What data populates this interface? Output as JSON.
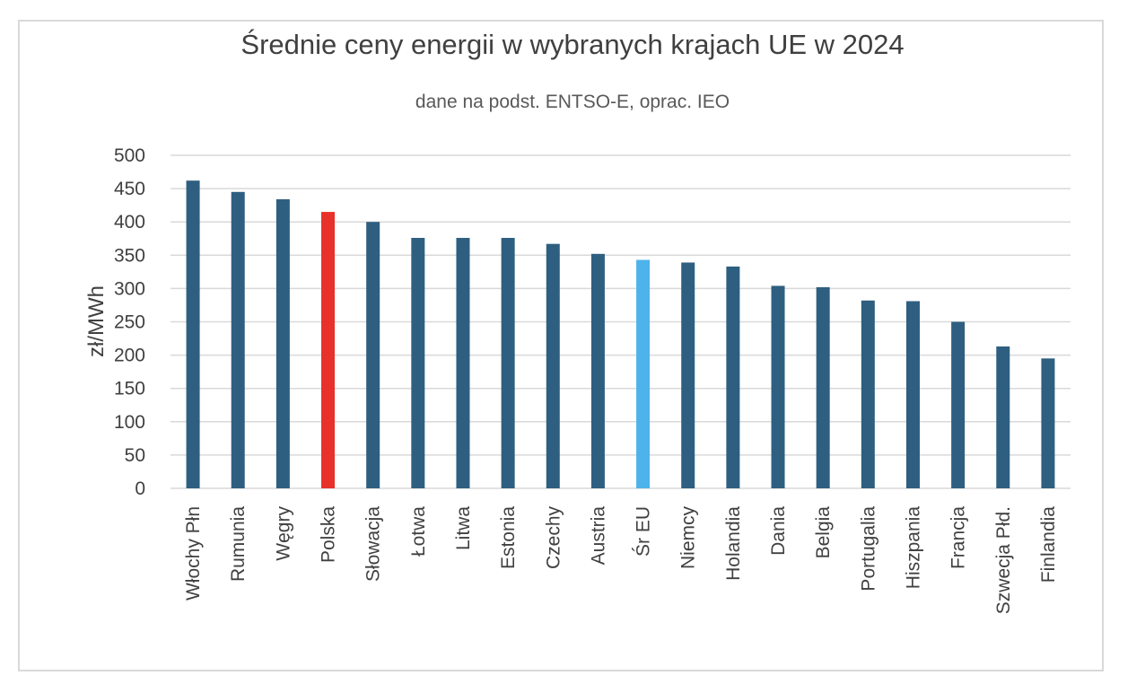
{
  "chart_data": {
    "type": "bar",
    "title": "Średnie ceny energii w wybranych krajach UE w 2024",
    "subtitle": "dane na podst. ENTSO-E, oprac. IEO",
    "xlabel": "",
    "ylabel": "zł/MWh",
    "ylim": [
      0,
      500
    ],
    "yticks": [
      0,
      50,
      100,
      150,
      200,
      250,
      300,
      350,
      400,
      450,
      500
    ],
    "grid": true,
    "legend": "none",
    "categories": [
      "Włochy Płn",
      "Rumunia",
      "Węgry",
      "Polska",
      "Słowacja",
      "Łotwa",
      "Litwa",
      "Estonia",
      "Czechy",
      "Austria",
      "Śr EU",
      "Niemcy",
      "Holandia",
      "Dania",
      "Belgia",
      "Portugalia",
      "Hiszpania",
      "Francja",
      "Szwecja Płd.",
      "Finlandia"
    ],
    "values": [
      462,
      445,
      434,
      415,
      400,
      376,
      376,
      376,
      367,
      352,
      343,
      339,
      333,
      304,
      302,
      282,
      281,
      250,
      213,
      195
    ],
    "colors": {
      "default": "#2e5f80",
      "Polska": "#e8312a",
      "Śr EU": "#4db3ea",
      "grid": "#d9d9d9"
    }
  }
}
